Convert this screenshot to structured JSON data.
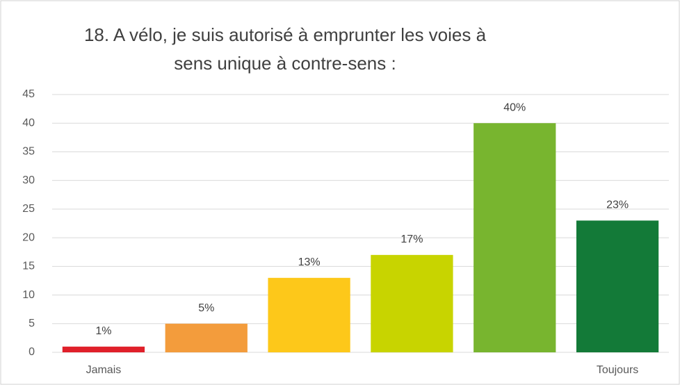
{
  "chart_data": {
    "type": "bar",
    "title": [
      "18. A vélo, je suis autorisé à emprunter les voies à",
      "sens unique à contre-sens :"
    ],
    "categories": [
      "Jamais",
      null,
      null,
      null,
      null,
      "Toujours"
    ],
    "values": [
      1,
      5,
      13,
      17,
      40,
      23
    ],
    "value_labels": [
      "1%",
      "5%",
      "13%",
      "17%",
      "40%",
      "23%"
    ],
    "colors": [
      "#e0202a",
      "#f39c3c",
      "#fdc81a",
      "#c8d400",
      "#78b52f",
      "#137a38"
    ],
    "ylim": [
      0,
      45
    ],
    "yticks": [
      0,
      5,
      10,
      15,
      20,
      25,
      30,
      35,
      40,
      45
    ],
    "grid": true
  }
}
